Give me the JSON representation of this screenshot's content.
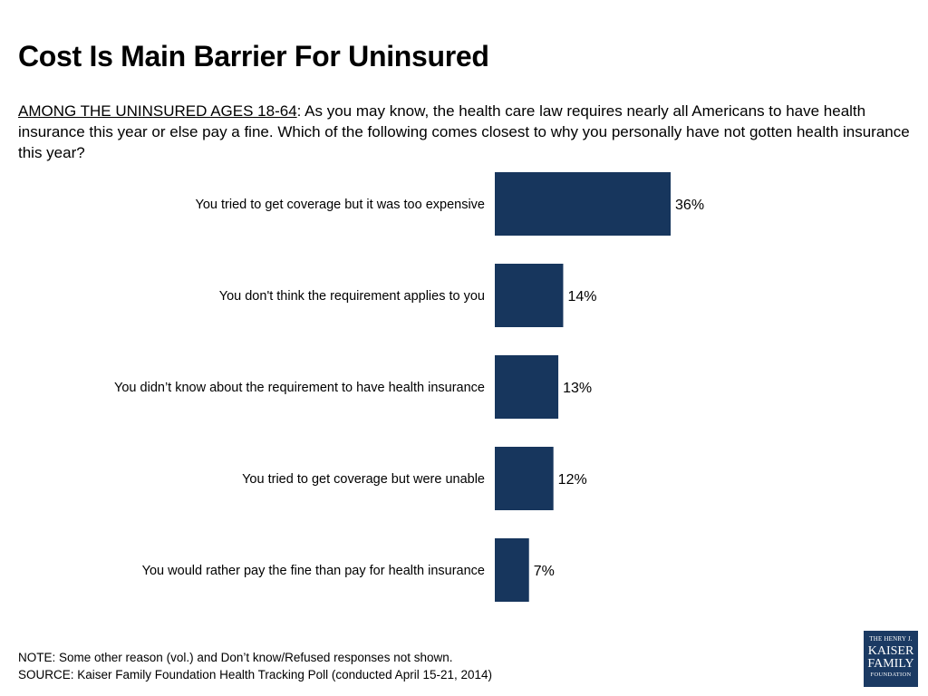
{
  "title": "Cost Is Main Barrier For Uninsured",
  "question": {
    "lead": "AMONG THE UNINSURED AGES 18-64",
    "text": ": As you may know, the health care law requires nearly all Americans to have health insurance this year or else pay a fine. Which of the following comes closest to why you personally have not gotten health insurance this year?"
  },
  "chart_data": {
    "type": "bar",
    "orientation": "horizontal",
    "categories": [
      "You tried to get coverage but it was too expensive",
      "You don't think the requirement applies to you",
      "You didn’t know about the requirement to have health insurance",
      "You tried to get coverage but were unable",
      "You would rather pay the fine than pay for health insurance"
    ],
    "values": [
      36,
      14,
      13,
      12,
      7
    ],
    "value_labels": [
      "36%",
      "14%",
      "13%",
      "12%",
      "7%"
    ],
    "unit": "%",
    "xlim": [
      0,
      100
    ],
    "grid": false,
    "legend": "none",
    "bar_color": "#17365d"
  },
  "notes": {
    "note": "NOTE: Some other reason (vol.) and Don’t know/Refused responses not shown.",
    "source": "SOURCE: Kaiser Family Foundation Health Tracking Poll (conducted April 15-21, 2014)"
  },
  "logo": {
    "line1": "THE HENRY J.",
    "line2": "KAISER",
    "line3": "FAMILY",
    "line4": "FOUNDATION"
  }
}
